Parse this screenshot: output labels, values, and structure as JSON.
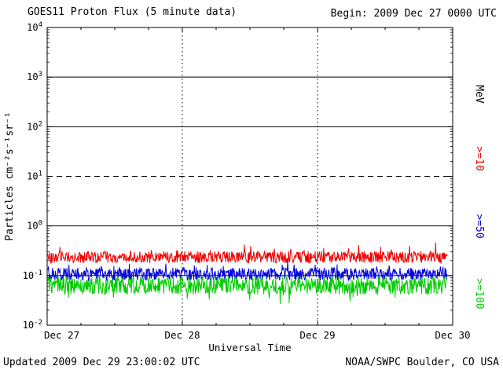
{
  "header": {
    "title": "GOES11 Proton Flux (5 minute data)",
    "begin_label": "Begin: 2009 Dec 27 0000 UTC"
  },
  "footer": {
    "updated": "Updated 2009 Dec 29 23:00:02 UTC",
    "source": "NOAA/SWPC Boulder, CO USA"
  },
  "chart_data": {
    "type": "line",
    "title": "GOES11 Proton Flux (5 minute data)",
    "xlabel": "Universal Time",
    "ylabel": "Particles  cm⁻²s⁻¹sr⁻¹",
    "right_axis_label": "MeV",
    "y_scale": "log10",
    "y_exp_range": [
      -2,
      4
    ],
    "y_tick_exponents": [
      4,
      3,
      2,
      1,
      0,
      -1,
      -2
    ],
    "dashed_threshold_exp": 1,
    "x_ticks": [
      "Dec 27",
      "Dec 28",
      "Dec 29",
      "Dec 30"
    ],
    "x_days_total": 3,
    "data_end_fraction": 0.986,
    "grid": "solid horizontal line per decade, dashed at 10^1, dotted vertical lines at day boundaries",
    "series": [
      {
        "name": ">=10",
        "color": "#ee0000",
        "approx_mean_flux": 0.23,
        "approx_range": [
          0.15,
          0.45
        ],
        "log10_mean": -0.63,
        "log10_amp": 0.12,
        "log10_spike": 0.2
      },
      {
        "name": ">=50",
        "color": "#0000dd",
        "approx_mean_flux": 0.105,
        "approx_range": [
          0.07,
          0.2
        ],
        "log10_mean": -0.97,
        "log10_amp": 0.13,
        "log10_spike": 0.15
      },
      {
        "name": ">=100",
        "color": "#00cc00",
        "approx_mean_flux": 0.062,
        "approx_range": [
          0.03,
          0.11
        ],
        "log10_mean": -1.2,
        "log10_amp": 0.18,
        "log10_spike": -0.3
      }
    ],
    "points_per_series": 800,
    "seed": 20091227
  }
}
